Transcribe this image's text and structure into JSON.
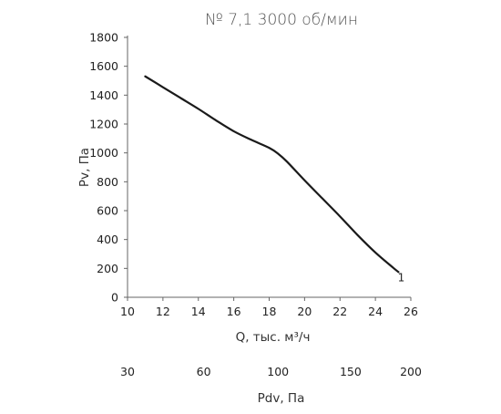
{
  "chart_data": {
    "type": "line",
    "title": "№ 7,1 3000 об/мин",
    "xlabel": "Q, тыс. м³/ч",
    "ylabel": "Pv, Па",
    "xlim": [
      10,
      26
    ],
    "ylim": [
      0,
      1800
    ],
    "x_ticks": [
      "10",
      "12",
      "14",
      "16",
      "18",
      "20",
      "22",
      "24",
      "26"
    ],
    "y_ticks": [
      "0",
      "200",
      "400",
      "600",
      "800",
      "1000",
      "1200",
      "1400",
      "1600",
      "1800"
    ],
    "secondary_axis": {
      "label": "Pdv, Па",
      "ticks": [
        {
          "value": 30,
          "label": "30",
          "at_x": 10
        },
        {
          "value": 60,
          "label": "60",
          "at_x": 14.3
        },
        {
          "value": 100,
          "label": "100",
          "at_x": 18.5
        },
        {
          "value": 150,
          "label": "150",
          "at_x": 22.6
        },
        {
          "value": 200,
          "label": "200",
          "at_x": 26
        }
      ]
    },
    "grid": false,
    "series": [
      {
        "name": "1",
        "color": "#1a1a1a",
        "x": [
          11,
          12,
          13,
          14,
          15,
          16,
          17,
          18,
          18.5,
          19,
          20,
          21,
          22,
          23,
          24,
          25,
          25.3
        ],
        "y": [
          1530,
          1455,
          1380,
          1305,
          1225,
          1150,
          1090,
          1035,
          995,
          940,
          810,
          685,
          560,
          430,
          310,
          205,
          175
        ]
      }
    ]
  }
}
